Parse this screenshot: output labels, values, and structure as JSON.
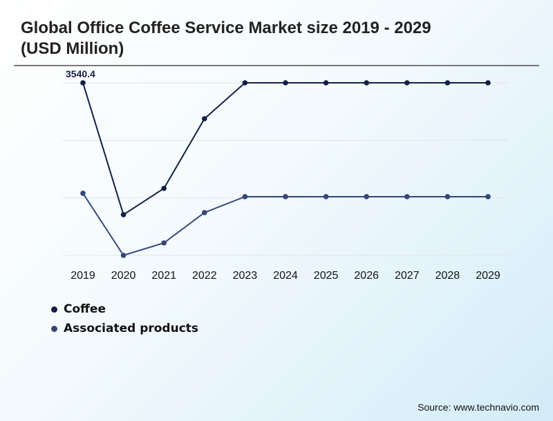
{
  "chart_data": {
    "type": "line",
    "title": "Global Office Coffee Service Market size 2019 - 2029 (USD Million)",
    "xlabel": "",
    "ylabel": "",
    "categories": [
      "2019",
      "2020",
      "2021",
      "2022",
      "2023",
      "2024",
      "2025",
      "2026",
      "2027",
      "2028",
      "2029"
    ],
    "ylim": [
      0,
      3540.4
    ],
    "grid": true,
    "legend_position": "bottom-left",
    "series": [
      {
        "name": "Coffee",
        "color": "#0f1f45",
        "values": [
          3540.4,
          835,
          1374,
          2804,
          3540.4,
          3540.4,
          3540.4,
          3540.4,
          3540.4,
          3540.4,
          3540.4
        ]
      },
      {
        "name": "Associated products",
        "color": "#34467a",
        "values": [
          1274,
          0,
          255,
          878,
          1204,
          1204,
          1204,
          1204,
          1204,
          1204,
          1204
        ]
      }
    ],
    "annotations": [
      {
        "series": "Coffee",
        "category": "2019",
        "text": "3540.4"
      }
    ]
  },
  "source": "Source: www.technavio.com"
}
